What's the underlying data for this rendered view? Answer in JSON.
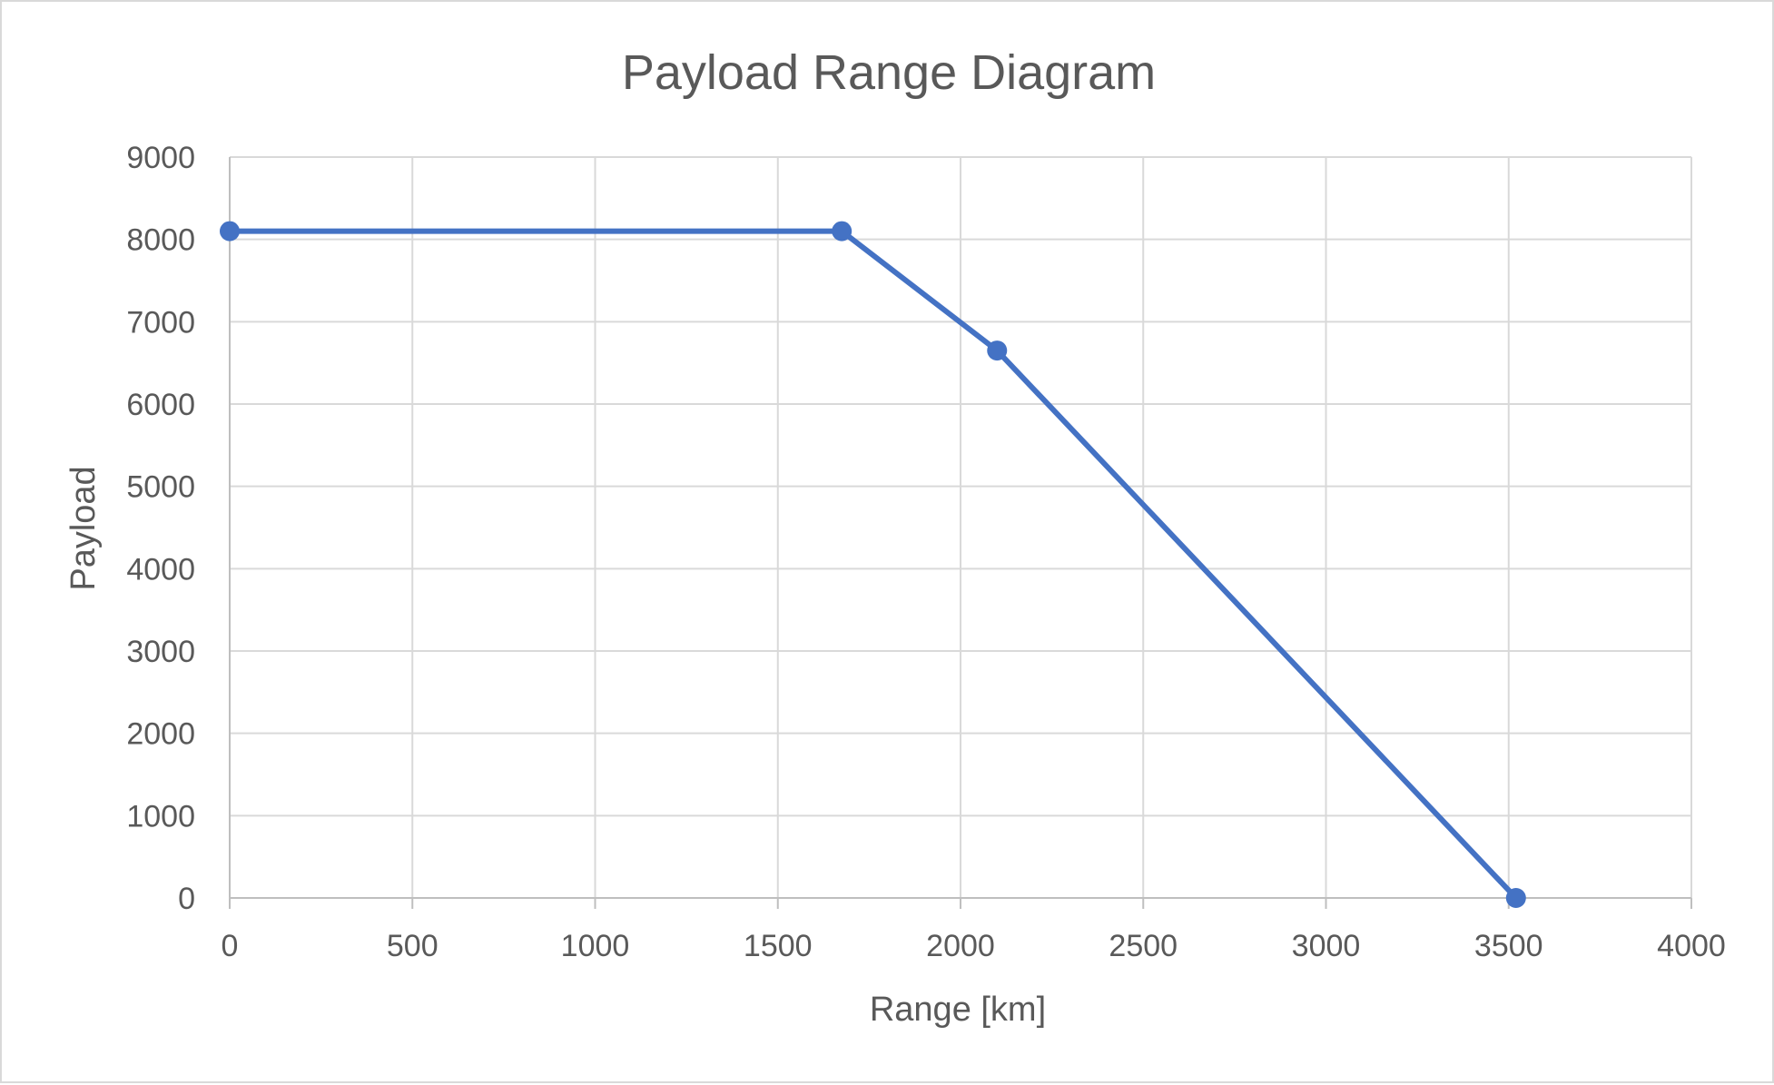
{
  "chart_data": {
    "type": "line",
    "title": "Payload Range Diagram",
    "xlabel": "Range [km]",
    "ylabel": "Payload",
    "xlim": [
      0,
      4000
    ],
    "ylim": [
      0,
      9000
    ],
    "xticks": [
      0,
      500,
      1000,
      1500,
      2000,
      2500,
      3000,
      3500,
      4000
    ],
    "yticks": [
      0,
      1000,
      2000,
      3000,
      4000,
      5000,
      6000,
      7000,
      8000,
      9000
    ],
    "grid": true,
    "legend": "none",
    "series": [
      {
        "color": "#4472c4",
        "marker": "circle",
        "points": [
          {
            "x": 0,
            "y": 8100
          },
          {
            "x": 1675,
            "y": 8100
          },
          {
            "x": 2100,
            "y": 6650
          },
          {
            "x": 3520,
            "y": 0
          }
        ]
      }
    ]
  }
}
